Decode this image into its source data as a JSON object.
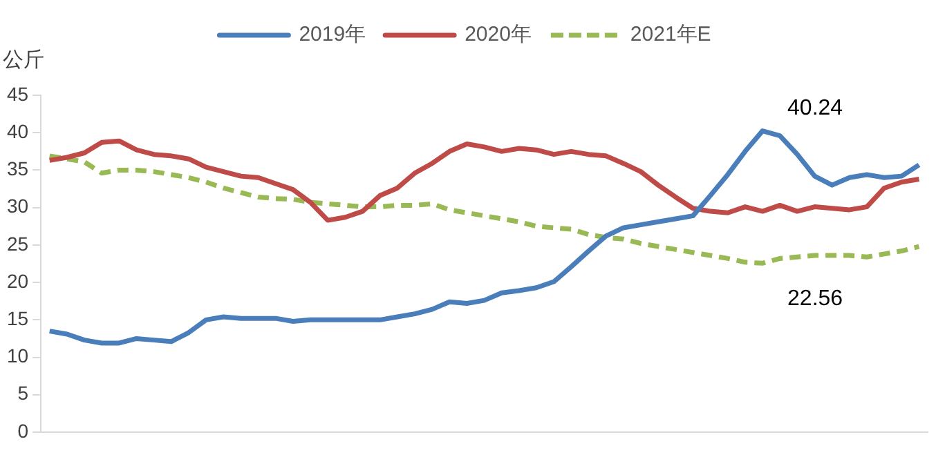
{
  "chart_data": {
    "type": "line",
    "ylabel": "公斤",
    "categories": [
      null,
      null,
      null,
      null,
      null,
      null,
      null,
      null,
      null,
      null,
      null,
      null,
      null,
      null,
      null,
      null,
      null,
      null,
      null,
      null,
      null,
      null,
      null,
      null,
      null,
      null,
      null,
      null,
      null,
      null,
      null,
      null,
      null,
      null,
      null,
      null,
      null,
      null,
      null,
      null,
      null,
      null,
      null,
      null,
      null,
      null,
      null,
      null,
      null,
      null,
      null
    ],
    "series": [
      {
        "name": "2019年",
        "color": "#4a7ebb",
        "line_style": "solid",
        "values": [
          13.5,
          13.1,
          12.3,
          11.9,
          11.9,
          12.5,
          12.3,
          12.1,
          13.3,
          15.0,
          15.4,
          15.2,
          15.2,
          15.2,
          14.8,
          15.0,
          15.0,
          15.0,
          15.0,
          15.0,
          15.4,
          15.8,
          16.4,
          17.4,
          17.2,
          17.6,
          18.6,
          18.9,
          19.3,
          20.1,
          22.1,
          24.2,
          26.2,
          27.3,
          27.7,
          28.1,
          28.5,
          28.9,
          31.6,
          34.4,
          37.5,
          40.24,
          39.6,
          37.1,
          34.2,
          33.0,
          34.0,
          34.4,
          34.0,
          34.2,
          35.7
        ]
      },
      {
        "name": "2020年",
        "color": "#be4b48",
        "line_style": "solid",
        "values": [
          36.3,
          36.7,
          37.3,
          38.7,
          38.9,
          37.7,
          37.1,
          36.9,
          36.5,
          35.4,
          34.8,
          34.2,
          34.0,
          33.2,
          32.4,
          30.7,
          28.3,
          28.7,
          29.5,
          31.6,
          32.6,
          34.6,
          35.9,
          37.5,
          38.5,
          38.1,
          37.5,
          37.9,
          37.7,
          37.1,
          37.5,
          37.1,
          36.9,
          35.9,
          34.8,
          33.0,
          31.4,
          29.9,
          29.5,
          29.3,
          30.1,
          29.5,
          30.3,
          29.5,
          30.1,
          29.9,
          29.7,
          30.1,
          32.6,
          33.4,
          33.8
        ]
      },
      {
        "name": "2021年E",
        "color": "#98b954",
        "line_style": "dashed",
        "values": [
          36.9,
          36.5,
          36.1,
          34.6,
          35.0,
          35.0,
          34.8,
          34.4,
          34.0,
          33.4,
          32.6,
          32.0,
          31.4,
          31.2,
          31.1,
          30.7,
          30.5,
          30.3,
          30.1,
          30.1,
          30.3,
          30.3,
          30.5,
          29.7,
          29.3,
          28.9,
          28.5,
          28.1,
          27.5,
          27.3,
          27.1,
          26.4,
          26.0,
          25.8,
          25.2,
          24.8,
          24.4,
          24.0,
          23.6,
          23.2,
          22.7,
          22.56,
          23.2,
          23.4,
          23.6,
          23.6,
          23.6,
          23.4,
          23.8,
          24.2,
          24.8
        ]
      }
    ],
    "ylim": [
      0,
      45
    ],
    "yticks": [
      0,
      5,
      10,
      15,
      20,
      25,
      30,
      35,
      40,
      45
    ],
    "annotations": [
      "40.24",
      "22.56"
    ],
    "grid": false,
    "legend": "top",
    "tick_labels": "y",
    "marker": "none"
  }
}
